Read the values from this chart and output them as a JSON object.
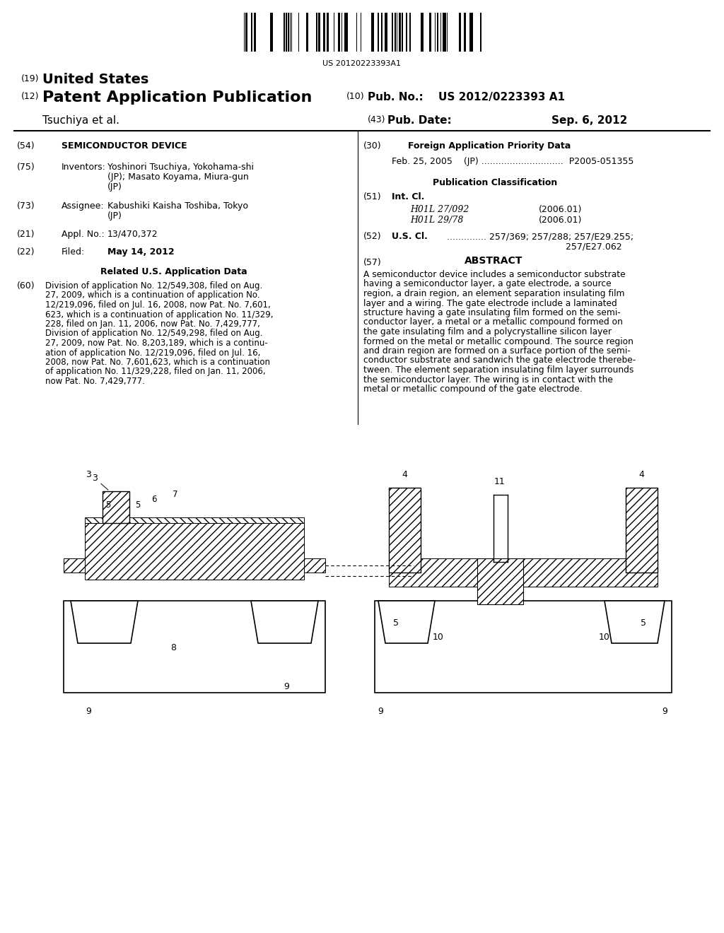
{
  "background_color": "#ffffff",
  "barcode_text": "US 20120223393A1",
  "header_line1_num": "(19)",
  "header_line1_text": "United States",
  "header_line2_num": "(12)",
  "header_line2_text": "Patent Application Publication",
  "header_right1_num": "(10)",
  "header_right1_label": "Pub. No.:",
  "header_right1_value": "US 2012/0223393 A1",
  "header_line3_left": "Tsuchiya et al.",
  "header_right2_num": "(43)",
  "header_right2_label": "Pub. Date:",
  "header_right2_value": "Sep. 6, 2012",
  "field54_num": "(54)",
  "field54_label": "SEMICONDUCTOR DEVICE",
  "field75_num": "(75)",
  "field75_label": "Inventors:",
  "field75_value": "Yoshinori Tsuchiya, Yokohama-shi\n(JP); Masato Koyama, Miura-gun\n(JP)",
  "field73_num": "(73)",
  "field73_label": "Assignee:",
  "field73_value": "Kabushiki Kaisha Toshiba, Tokyo\n(JP)",
  "field21_num": "(21)",
  "field21_label": "Appl. No.:",
  "field21_value": "13/470,372",
  "field22_num": "(22)",
  "field22_label": "Filed:",
  "field22_value": "May 14, 2012",
  "related_title": "Related U.S. Application Data",
  "field60_num": "(60)",
  "field60_text": "Division of application No. 12/549,308, filed on Aug. 27, 2009, which is a continuation of application No. 12/219,096, filed on Jul. 16, 2008, now Pat. No. 7,601, 623, which is a continuation of application No. 11/329, 228, filed on Jan. 11, 2006, now Pat. No. 7,429,777, Division of application No. 12/549,298, filed on Aug. 27, 2009, now Pat. No. 8,203,189, which is a continuation of application No. 12/219,096, filed on Jul. 16, 2008, now Pat. No. 7,601,623, which is a continuation of application No. 11/329,228, filed on Jan. 11, 2006, now Pat. No. 7,429,777.",
  "field30_num": "(30)",
  "field30_label": "Foreign Application Priority Data",
  "field30_entry": "Feb. 25, 2005    (JP) .............................  P2005-051355",
  "pub_class_label": "Publication Classification",
  "field51_num": "(51)",
  "field51_label": "Int. Cl.",
  "field51_class1": "H01L 27/092",
  "field51_date1": "(2006.01)",
  "field51_class2": "H01L 29/78",
  "field51_date2": "(2006.01)",
  "field52_num": "(52)",
  "field52_label": "U.S. Cl.",
  "field52_value": "257/369; 257/288; 257/E29.255;\n                                                  257/E27.062",
  "field57_num": "(57)",
  "field57_label": "ABSTRACT",
  "abstract_text": "A semiconductor device includes a semiconductor substrate having a semiconductor layer, a gate electrode, a source region, a drain region, an element separation insulating film layer and a wiring. The gate electrode include a laminated structure having a gate insulating film formed on the semi-conductor layer, a metal or a metallic compound formed on the gate insulating film and a polycrystalline silicon layer formed on the metal or metallic compound. The source region and drain region are formed on a surface portion of the semi-conductor substrate and sandwich the gate electrode therebetween. The element separation insulating film layer surrounds the semiconductor layer. The wiring is in contact with the metal or metallic compound of the gate electrode."
}
